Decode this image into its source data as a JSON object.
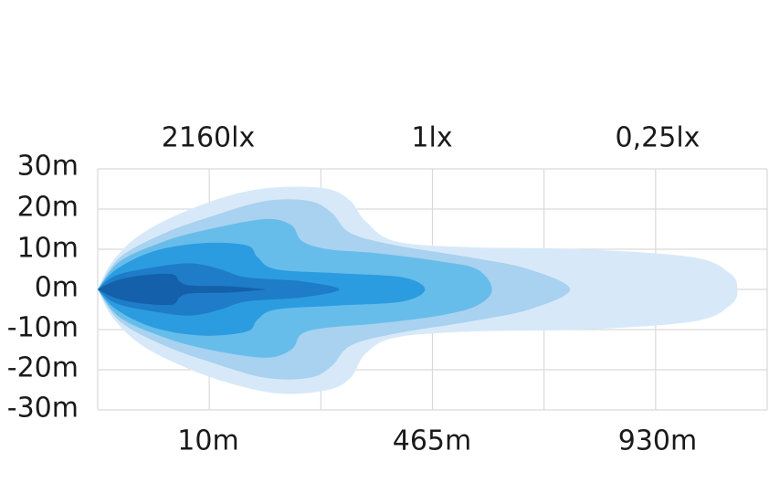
{
  "chart_data": {
    "type": "area",
    "y_ticks": [
      "30m",
      "20m",
      "10m",
      "0m",
      "-10m",
      "-20m",
      "-30m"
    ],
    "ylim": [
      -30,
      30
    ],
    "top_labels": [
      "2160lx",
      "1lx",
      "0,25lx"
    ],
    "bottom_labels": [
      "10m",
      "465m",
      "930m"
    ],
    "grid": true,
    "series": [
      {
        "color": "#d7e9f8",
        "upper": [
          [
            0,
            0
          ],
          [
            4,
            7
          ],
          [
            12,
            14
          ],
          [
            25,
            20
          ],
          [
            38,
            24
          ],
          [
            50,
            25.5
          ],
          [
            62,
            25
          ],
          [
            68,
            22
          ],
          [
            72,
            17
          ],
          [
            80,
            12
          ],
          [
            100,
            10.5
          ],
          [
            130,
            10
          ],
          [
            160,
            8
          ],
          [
            170,
            4
          ],
          [
            172,
            0
          ]
        ],
        "lower": [
          [
            0,
            0
          ],
          [
            4,
            -7
          ],
          [
            12,
            -14
          ],
          [
            25,
            -20
          ],
          [
            38,
            -24
          ],
          [
            50,
            -26
          ],
          [
            62,
            -25
          ],
          [
            68,
            -22
          ],
          [
            72,
            -16
          ],
          [
            80,
            -12
          ],
          [
            100,
            -10.5
          ],
          [
            130,
            -10
          ],
          [
            160,
            -8
          ],
          [
            170,
            -4
          ],
          [
            172,
            0
          ]
        ]
      },
      {
        "color": "#a9d1f0",
        "upper": [
          [
            0,
            0
          ],
          [
            6,
            8
          ],
          [
            18,
            14
          ],
          [
            30,
            18
          ],
          [
            45,
            22
          ],
          [
            57,
            22
          ],
          [
            63,
            19
          ],
          [
            68,
            14
          ],
          [
            80,
            11
          ],
          [
            100,
            8
          ],
          [
            116,
            5
          ],
          [
            127,
            0
          ]
        ],
        "lower": [
          [
            0,
            0
          ],
          [
            6,
            -8
          ],
          [
            18,
            -14
          ],
          [
            30,
            -18
          ],
          [
            45,
            -22
          ],
          [
            57,
            -22
          ],
          [
            63,
            -19
          ],
          [
            68,
            -14
          ],
          [
            80,
            -11
          ],
          [
            100,
            -8
          ],
          [
            116,
            -5
          ],
          [
            127,
            0
          ]
        ]
      },
      {
        "color": "#67bdea",
        "upper": [
          [
            0,
            0
          ],
          [
            6,
            7
          ],
          [
            18,
            12
          ],
          [
            30,
            15
          ],
          [
            45,
            17.5
          ],
          [
            52,
            16
          ],
          [
            55,
            12
          ],
          [
            62,
            10
          ],
          [
            75,
            9
          ],
          [
            92,
            7
          ],
          [
            102,
            5
          ],
          [
            106,
            0
          ]
        ],
        "lower": [
          [
            0,
            0
          ],
          [
            6,
            -7
          ],
          [
            18,
            -12
          ],
          [
            30,
            -15
          ],
          [
            45,
            -17
          ],
          [
            52,
            -15
          ],
          [
            55,
            -11
          ],
          [
            62,
            -9.5
          ],
          [
            75,
            -8.5
          ],
          [
            92,
            -6.5
          ],
          [
            102,
            -4
          ],
          [
            106,
            0
          ]
        ]
      },
      {
        "color": "#2c9ce0",
        "upper": [
          [
            0,
            0
          ],
          [
            5,
            5
          ],
          [
            15,
            9.5
          ],
          [
            28,
            11.5
          ],
          [
            40,
            11
          ],
          [
            43,
            8
          ],
          [
            48,
            5
          ],
          [
            65,
            4
          ],
          [
            82,
            3
          ],
          [
            88,
            0
          ]
        ],
        "lower": [
          [
            0,
            0
          ],
          [
            5,
            -5
          ],
          [
            15,
            -9.5
          ],
          [
            28,
            -11.5
          ],
          [
            40,
            -10.5
          ],
          [
            43,
            -7.5
          ],
          [
            48,
            -5
          ],
          [
            65,
            -4
          ],
          [
            82,
            -3
          ],
          [
            88,
            0
          ]
        ]
      },
      {
        "color": "#1e7cc8",
        "upper": [
          [
            0,
            0
          ],
          [
            5,
            3.5
          ],
          [
            15,
            5.5
          ],
          [
            25,
            6.5
          ],
          [
            33,
            5
          ],
          [
            40,
            3
          ],
          [
            55,
            2
          ],
          [
            65,
            0
          ]
        ],
        "lower": [
          [
            0,
            0
          ],
          [
            5,
            -3.5
          ],
          [
            15,
            -5.5
          ],
          [
            25,
            -6.5
          ],
          [
            33,
            -5
          ],
          [
            40,
            -3
          ],
          [
            55,
            -2
          ],
          [
            65,
            0
          ]
        ]
      },
      {
        "color": "#1560aa",
        "upper": [
          [
            0,
            0
          ],
          [
            5,
            2.2
          ],
          [
            12,
            3.5
          ],
          [
            20,
            3.8
          ],
          [
            22,
            2
          ],
          [
            25,
            1
          ],
          [
            35,
            0.8
          ],
          [
            42,
            0.3
          ],
          [
            45,
            0
          ]
        ],
        "lower": [
          [
            0,
            0
          ],
          [
            5,
            -2.2
          ],
          [
            12,
            -3.5
          ],
          [
            20,
            -3.8
          ],
          [
            22,
            -2
          ],
          [
            25,
            -1
          ],
          [
            35,
            -0.8
          ],
          [
            42,
            -0.3
          ],
          [
            45,
            0
          ]
        ]
      }
    ]
  }
}
